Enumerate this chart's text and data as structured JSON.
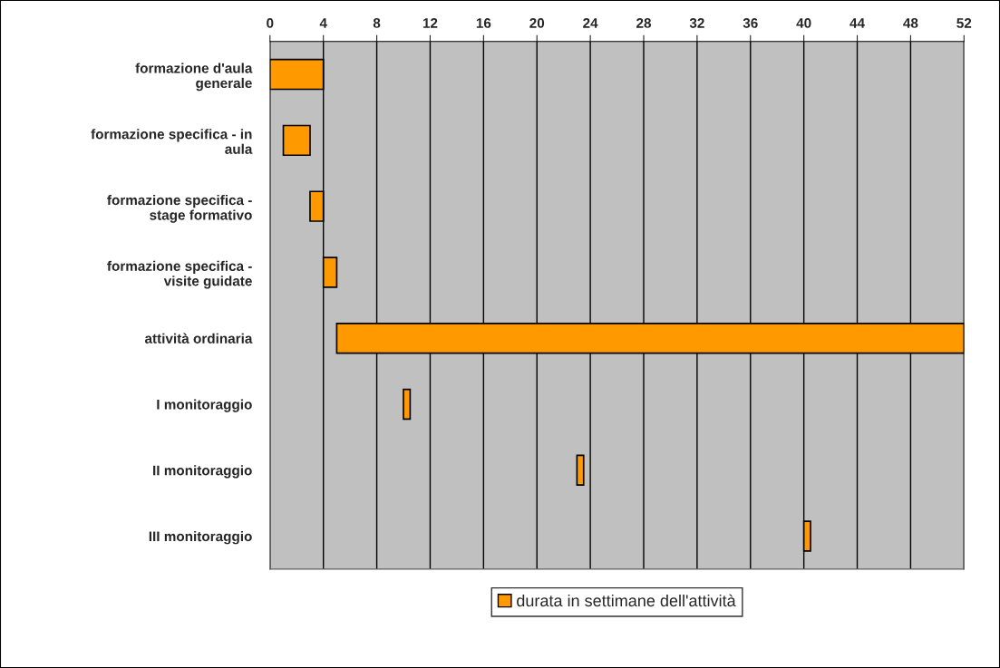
{
  "chart_data": {
    "type": "bar",
    "orientation": "horizontal",
    "categories": [
      "formazione d'aula\ngenerale",
      "formazione specifica - in\naula",
      "formazione specifica -\nstage formativo",
      "formazione specifica -\nvisite guidate",
      "attività ordinaria",
      "I monitoraggio",
      "II monitoraggio",
      "III monitoraggio"
    ],
    "series": [
      {
        "name": "durata in settimane dell'attività",
        "color": "#ff9900",
        "base": [
          0,
          1,
          3,
          4,
          5,
          10,
          23,
          40
        ],
        "values": [
          4,
          2,
          1,
          1,
          47,
          0.5,
          0.5,
          0.5
        ]
      }
    ],
    "xlim": [
      0,
      52
    ],
    "xticks": [
      0,
      4,
      8,
      12,
      16,
      20,
      24,
      28,
      32,
      36,
      40,
      44,
      48,
      52
    ],
    "grid": "x",
    "legend": "bottom"
  }
}
